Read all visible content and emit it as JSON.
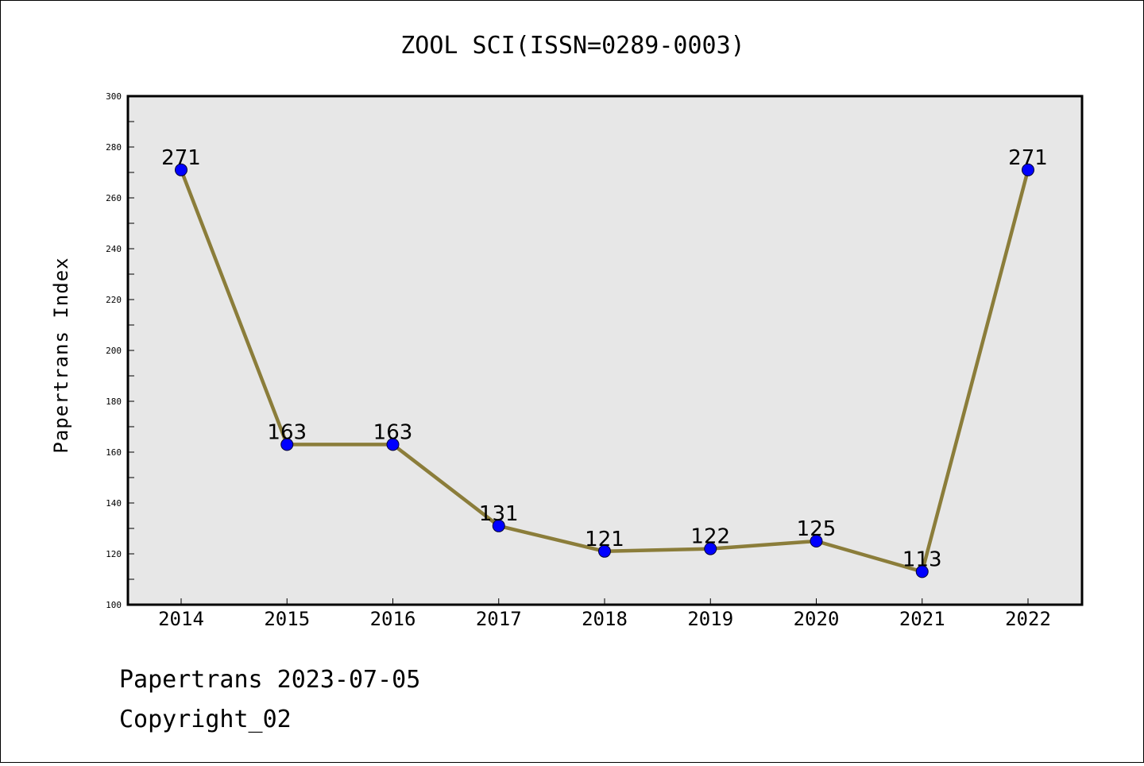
{
  "chart_data": {
    "type": "line",
    "title": "ZOOL SCI(ISSN=0289-0003)",
    "xlabel": "",
    "ylabel": "Papertrans Index",
    "categories": [
      "2014",
      "2015",
      "2016",
      "2017",
      "2018",
      "2019",
      "2020",
      "2021",
      "2022"
    ],
    "series": [
      {
        "values": [
          271,
          163,
          163,
          131,
          121,
          122,
          125,
          113,
          271
        ]
      }
    ],
    "ylim": [
      100,
      300
    ],
    "yticks": [
      100,
      120,
      140,
      160,
      180,
      200,
      220,
      240,
      260,
      280,
      300
    ],
    "grid": false,
    "legend": "none",
    "colors": {
      "line": "#8b7d3a",
      "marker": "#0000ff",
      "plot_background": "#e7e7e7"
    }
  },
  "footer": {
    "line1": "Papertrans 2023-07-05",
    "line2": "Copyright_02"
  }
}
